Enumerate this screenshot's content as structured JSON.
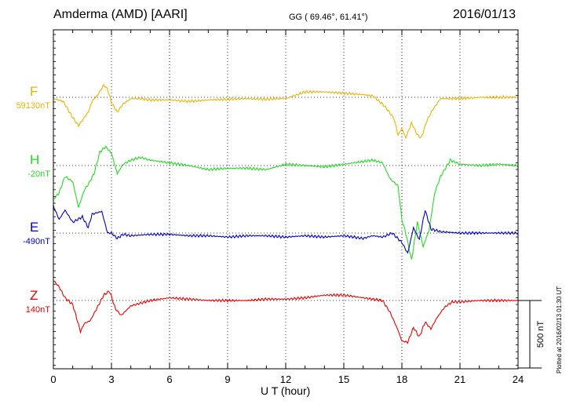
{
  "header": {
    "station": "Amderma (AMD)  [AARI]",
    "coords": "GG ( 69.46°,  61.41°)",
    "date": "2016/01/13"
  },
  "footer": {
    "xlabel": "U T (hour)",
    "plotted": "Plotted at 2016/02/13 01:30 UT"
  },
  "chart_data": {
    "type": "line",
    "title": "Amderma (AMD)  [AARI]",
    "xlabel": "U T (hour)",
    "ylabel": "",
    "xlim": [
      0,
      24
    ],
    "x_ticks": [
      "0",
      "3",
      "6",
      "9",
      "12",
      "15",
      "18",
      "21",
      "24"
    ],
    "grid": true,
    "scale_bar": {
      "value": 500,
      "label": "500 nT"
    },
    "series": [
      {
        "name": "F",
        "baseline": "59130nT",
        "color": "#f0b400",
        "x": [
          0,
          0.5,
          1,
          1.3,
          1.5,
          1.8,
          2,
          2.3,
          2.6,
          2.8,
          3,
          3.3,
          3.6,
          4,
          4.5,
          5,
          6,
          7,
          8,
          9,
          10,
          11,
          11.5,
          12,
          13,
          14,
          15,
          16,
          16.5,
          17,
          17.3,
          17.6,
          17.8,
          18,
          18.2,
          18.5,
          18.8,
          19,
          19.3,
          19.6,
          20,
          21,
          22,
          23,
          24
        ],
        "y": [
          -10,
          -30,
          -150,
          -210,
          -170,
          -110,
          -30,
          20,
          90,
          60,
          -40,
          -110,
          -50,
          -10,
          -10,
          -20,
          -20,
          -30,
          -20,
          -15,
          -10,
          -15,
          -10,
          -10,
          40,
          40,
          30,
          20,
          10,
          -50,
          -100,
          -160,
          -280,
          -230,
          -300,
          -190,
          -280,
          -300,
          -170,
          -90,
          -10,
          -10,
          0,
          0,
          0
        ]
      },
      {
        "name": "H",
        "baseline": "-20nT",
        "color": "#22dd22",
        "x": [
          0,
          0.3,
          0.6,
          1,
          1.3,
          1.6,
          1.8,
          2.1,
          2.4,
          2.7,
          3,
          3.3,
          3.6,
          4,
          4.5,
          5,
          6,
          7,
          8,
          9,
          10,
          11,
          12,
          13,
          14,
          15,
          16,
          16.5,
          17,
          17.4,
          17.8,
          18,
          18.2,
          18.5,
          18.8,
          19.1,
          19.4,
          19.7,
          20,
          20.5,
          21,
          22,
          23,
          24
        ],
        "y": [
          -250,
          -200,
          -80,
          -120,
          -310,
          -180,
          -140,
          -60,
          100,
          140,
          90,
          -60,
          10,
          40,
          60,
          40,
          20,
          0,
          -30,
          -20,
          -20,
          -30,
          10,
          0,
          -10,
          10,
          30,
          40,
          20,
          -100,
          -150,
          -400,
          -500,
          -700,
          -420,
          -600,
          -480,
          -200,
          -80,
          40,
          10,
          0,
          10,
          0
        ]
      },
      {
        "name": "E",
        "baseline": "-490nT",
        "color": "#0000cc",
        "x": [
          0,
          0.3,
          0.6,
          1,
          1.5,
          1.8,
          2,
          2.5,
          2.8,
          3,
          3.3,
          3.6,
          4,
          5,
          6,
          7,
          8,
          9,
          10,
          11,
          12,
          13,
          14,
          15,
          16,
          16.5,
          17,
          17.5,
          18,
          18.3,
          18.6,
          18.9,
          19.2,
          19.5,
          20,
          21,
          22,
          23,
          24
        ],
        "y": [
          200,
          100,
          170,
          80,
          120,
          40,
          140,
          160,
          0,
          0,
          -40,
          -10,
          -20,
          -10,
          -10,
          -20,
          -20,
          -30,
          -20,
          -20,
          -30,
          -20,
          -30,
          -20,
          -40,
          -20,
          -30,
          0,
          -70,
          -150,
          40,
          -50,
          170,
          30,
          10,
          0,
          0,
          0,
          0
        ]
      },
      {
        "name": "Z",
        "baseline": "140nT",
        "color": "#ee0000",
        "x": [
          0,
          0.3,
          0.6,
          1,
          1.4,
          1.6,
          1.9,
          2.2,
          2.6,
          2.9,
          3.2,
          3.5,
          4,
          5,
          6,
          7,
          8,
          9,
          10,
          11,
          12,
          13,
          14,
          15,
          16,
          16.5,
          17,
          17.4,
          17.8,
          18,
          18.3,
          18.6,
          18.9,
          19.2,
          19.5,
          19.8,
          20.2,
          20.6,
          21,
          22,
          23,
          24
        ],
        "y": [
          150,
          100,
          20,
          -30,
          -230,
          -170,
          -150,
          -70,
          40,
          70,
          -60,
          -110,
          -40,
          0,
          20,
          10,
          0,
          0,
          0,
          10,
          10,
          20,
          40,
          40,
          20,
          10,
          0,
          -90,
          -220,
          -300,
          -310,
          -200,
          -270,
          -160,
          -210,
          -130,
          -50,
          -10,
          -10,
          0,
          0,
          0
        ]
      }
    ]
  }
}
